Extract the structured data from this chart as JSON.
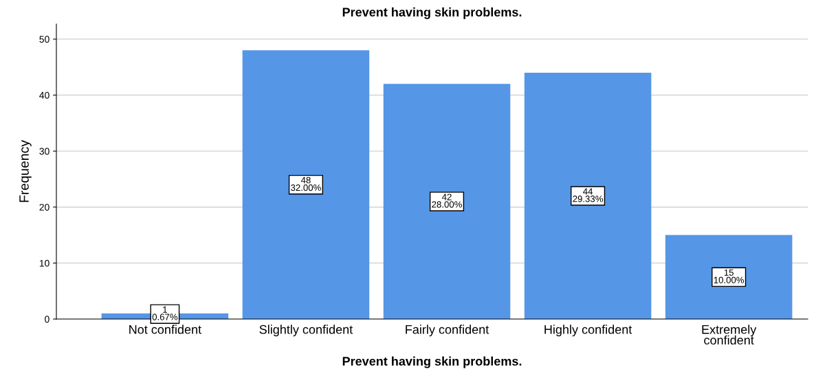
{
  "chart_data": {
    "type": "bar",
    "title": "Prevent having skin problems.",
    "xlabel": "Prevent having skin problems.",
    "ylabel": "Frequency",
    "categories": [
      "Not confident",
      "Slightly confident",
      "Fairly confident",
      "Highly confident",
      "Extremely\nconfident"
    ],
    "values": [
      1,
      48,
      42,
      44,
      15
    ],
    "value_labels": [
      "1\n0.67%",
      "48\n32.00%",
      "42\n28.00%",
      "44\n29.33%",
      "15\n10.00%"
    ],
    "color": "#5596e6",
    "ylim": [
      0,
      52.7
    ],
    "yticks": [
      0,
      10,
      20,
      30,
      40,
      50
    ],
    "grid": "y",
    "legend": false
  }
}
